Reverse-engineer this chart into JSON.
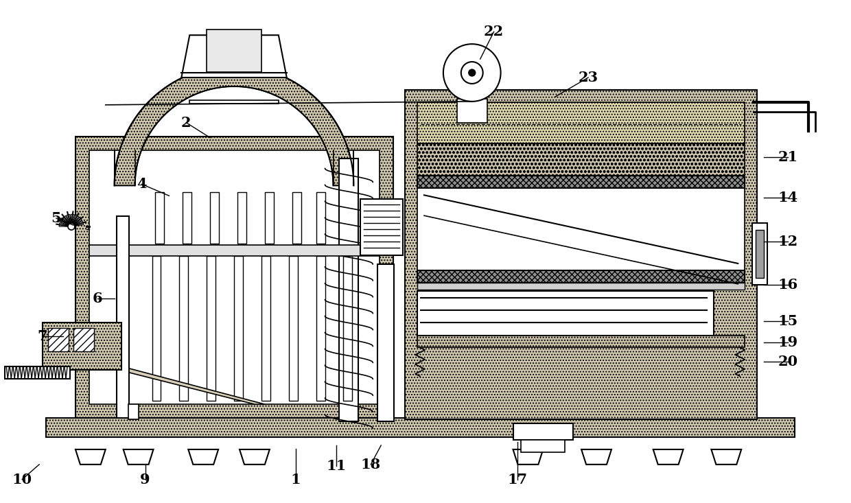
{
  "bg_color": "#ffffff",
  "line_color": "#000000",
  "callouts": [
    [
      "1",
      430,
      655,
      430,
      700
    ],
    [
      "2",
      305,
      200,
      270,
      178
    ],
    [
      "4",
      245,
      285,
      205,
      268
    ],
    [
      "5",
      105,
      328,
      80,
      318
    ],
    [
      "6",
      165,
      435,
      140,
      435
    ],
    [
      "7",
      90,
      490,
      60,
      490
    ],
    [
      "9",
      210,
      678,
      210,
      700
    ],
    [
      "10",
      55,
      678,
      30,
      700
    ],
    [
      "11",
      490,
      650,
      490,
      680
    ],
    [
      "12",
      1115,
      352,
      1150,
      352
    ],
    [
      "14",
      1115,
      288,
      1150,
      288
    ],
    [
      "15",
      1115,
      468,
      1150,
      468
    ],
    [
      "16",
      1115,
      415,
      1150,
      415
    ],
    [
      "17",
      755,
      645,
      755,
      700
    ],
    [
      "18",
      555,
      650,
      540,
      678
    ],
    [
      "19",
      1115,
      500,
      1150,
      500
    ],
    [
      "20",
      1115,
      528,
      1150,
      528
    ],
    [
      "21",
      1115,
      228,
      1150,
      228
    ],
    [
      "22",
      700,
      85,
      720,
      45
    ],
    [
      "23",
      810,
      140,
      858,
      112
    ]
  ]
}
